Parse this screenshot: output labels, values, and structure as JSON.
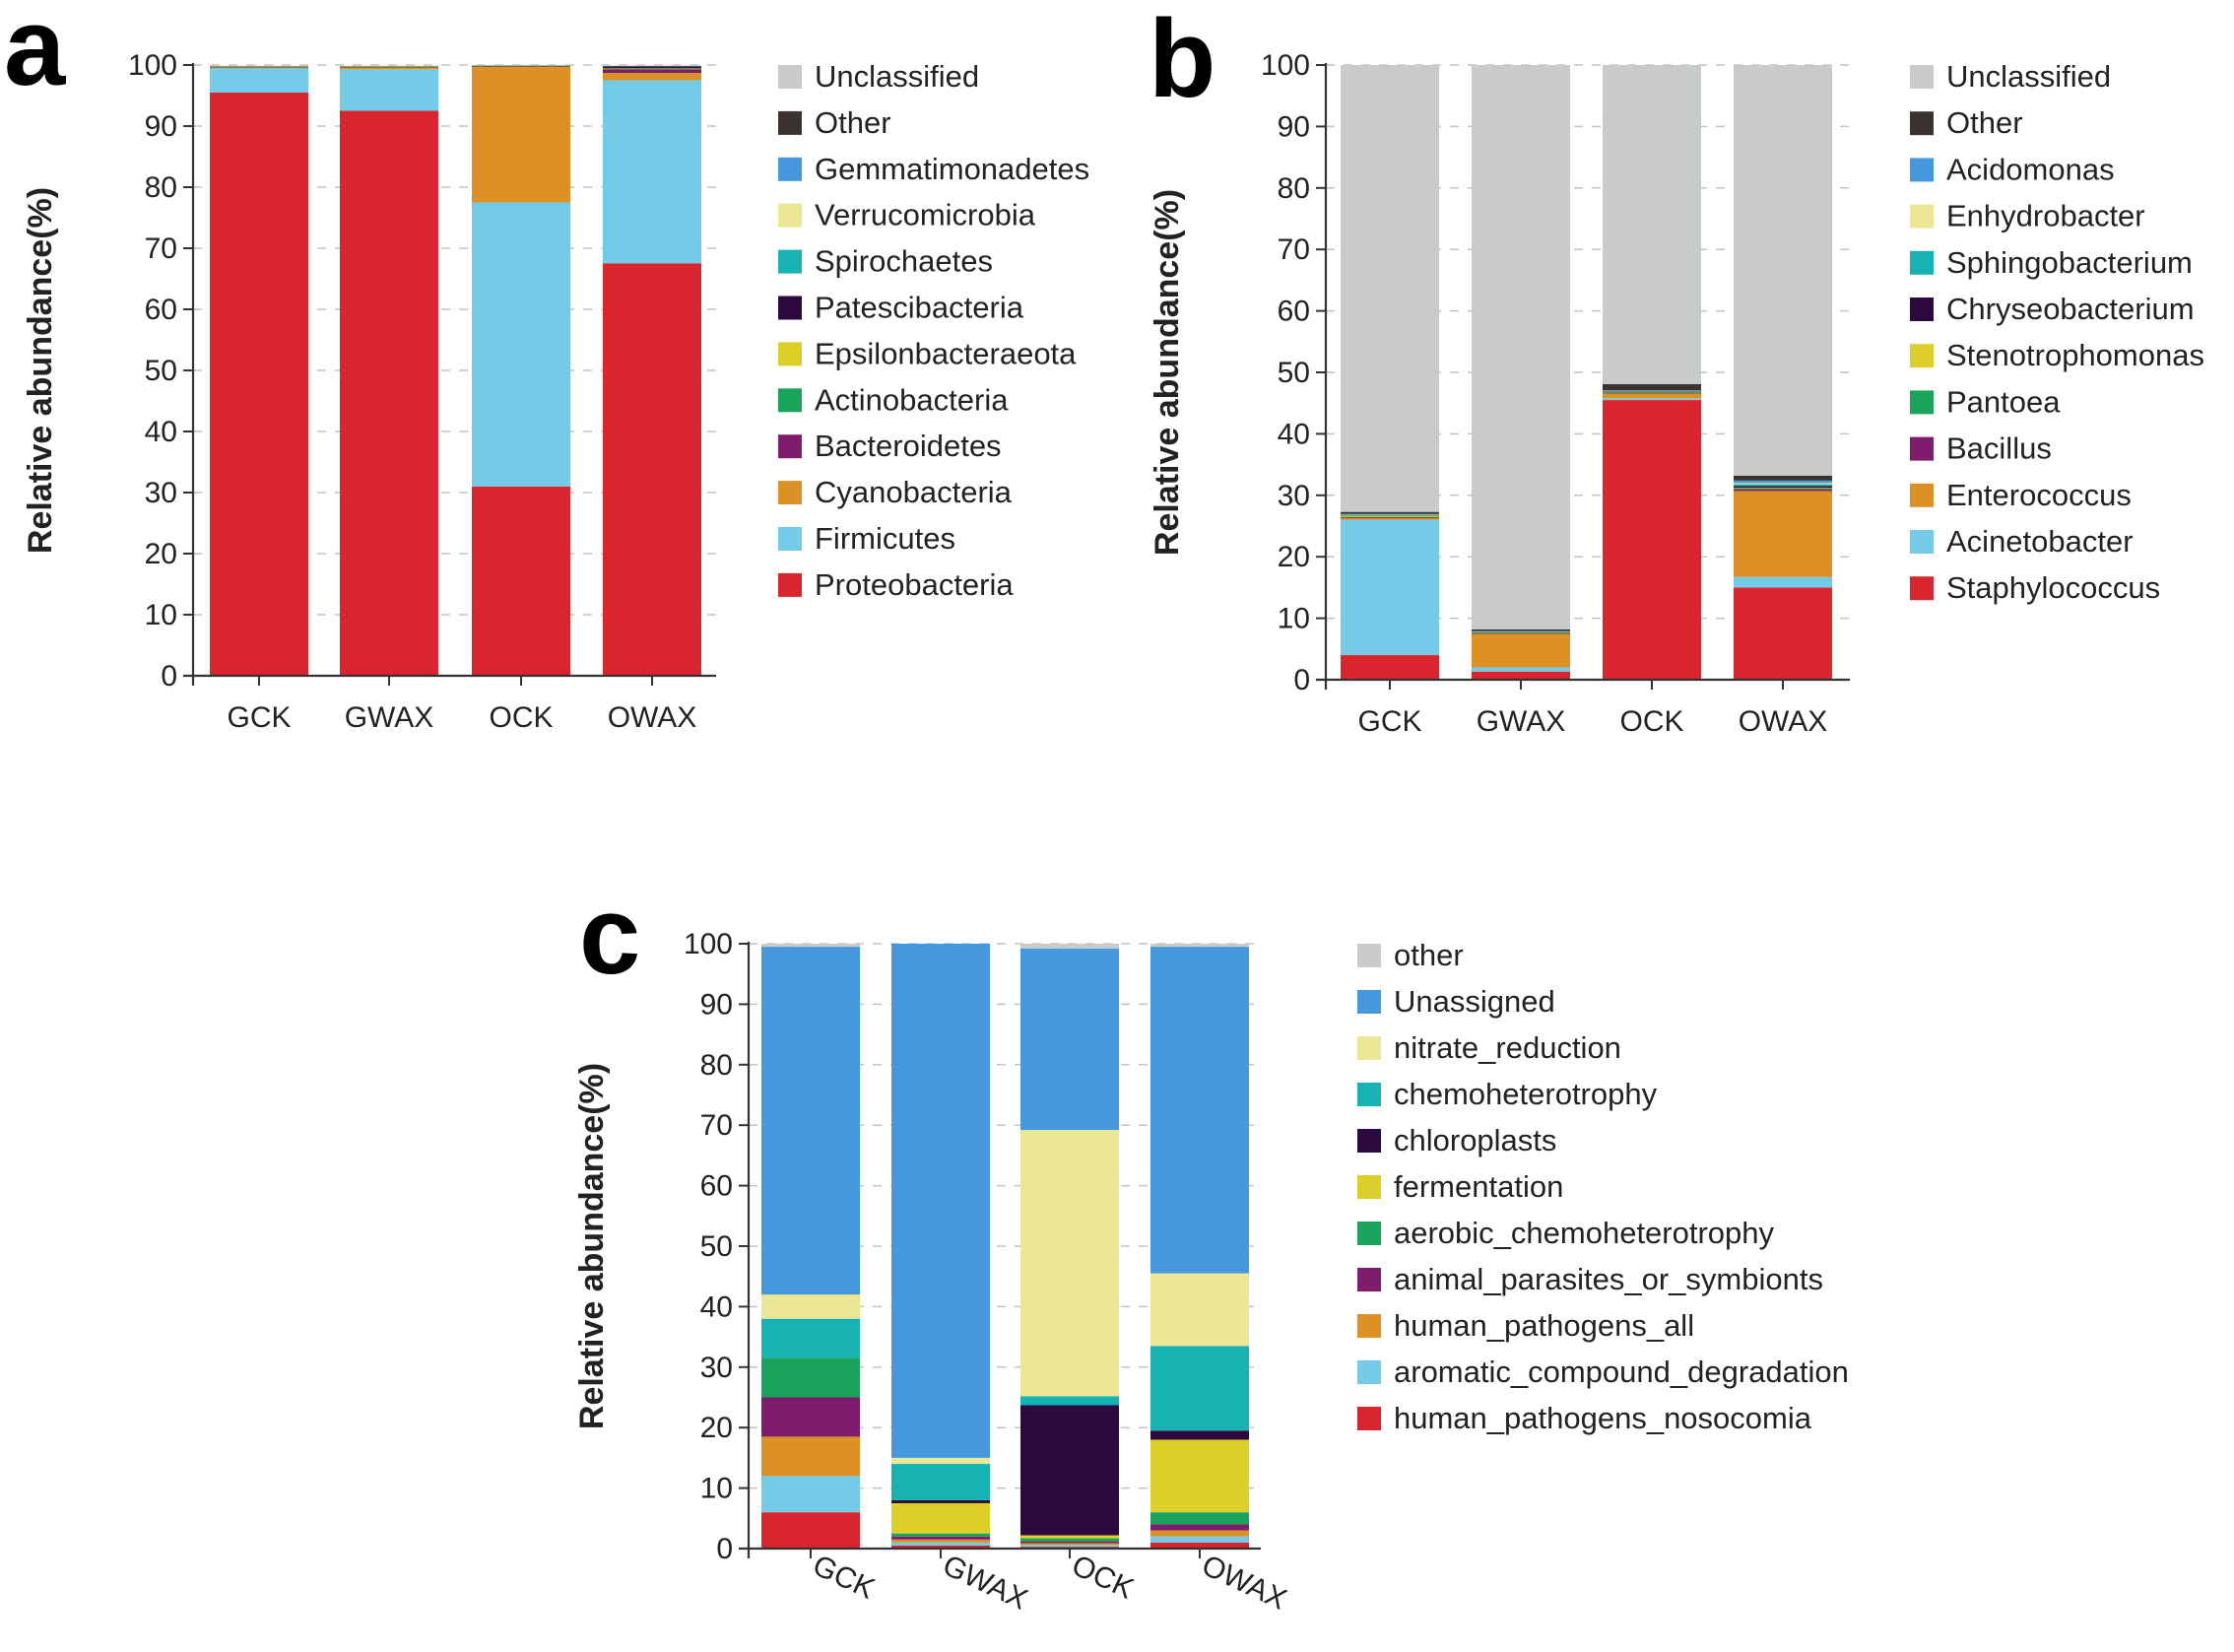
{
  "chart_data": [
    {
      "panel": "a",
      "type": "stacked_bar",
      "ylabel": "Relative abundance(%)",
      "ylim": [
        0,
        100
      ],
      "yticks": [
        0,
        10,
        20,
        30,
        40,
        50,
        60,
        70,
        80,
        90,
        100
      ],
      "grid": "dashed horizontal",
      "legend_position": "right",
      "categories": [
        "GCK",
        "GWAX",
        "OCK",
        "OWAX"
      ],
      "series": [
        {
          "name": "Proteobacteria",
          "color": "#d9262e",
          "values": [
            95.5,
            92.5,
            31.0,
            67.5
          ]
        },
        {
          "name": "Firmicutes",
          "color": "#74cbe8",
          "values": [
            4.0,
            6.8,
            46.5,
            30.0
          ]
        },
        {
          "name": "Cyanobacteria",
          "color": "#dd9125",
          "values": [
            0.1,
            0.3,
            22.3,
            1.2
          ]
        },
        {
          "name": "Bacteroidetes",
          "color": "#7e1d6c",
          "values": [
            0.1,
            0.1,
            0.05,
            0.6
          ]
        },
        {
          "name": "Actinobacteria",
          "color": "#1aa35b",
          "values": [
            0.05,
            0.05,
            0.05,
            0.1
          ]
        },
        {
          "name": "Epsilonbacteraeota",
          "color": "#dccf2a",
          "values": [
            0.05,
            0.05,
            0.0,
            0.05
          ]
        },
        {
          "name": "Patescibacteria",
          "color": "#2c0a40",
          "values": [
            0.0,
            0.0,
            0.0,
            0.35
          ]
        },
        {
          "name": "Spirochaetes",
          "color": "#17b3b3",
          "values": [
            0.0,
            0.0,
            0.0,
            0.05
          ]
        },
        {
          "name": "Verrucomicrobia",
          "color": "#ece795",
          "values": [
            0.0,
            0.0,
            0.0,
            0.0
          ]
        },
        {
          "name": "Gemmatimonadetes",
          "color": "#4598dc",
          "values": [
            0.0,
            0.0,
            0.0,
            0.0
          ]
        },
        {
          "name": "Other",
          "color": "#3a3330",
          "values": [
            0.05,
            0.05,
            0.05,
            0.05
          ]
        },
        {
          "name": "Unclassified",
          "color": "#c9cbca",
          "values": [
            0.05,
            0.05,
            0.05,
            0.05
          ]
        }
      ]
    },
    {
      "panel": "b",
      "type": "stacked_bar",
      "ylabel": "Relative abundance(%)",
      "ylim": [
        0,
        100
      ],
      "yticks": [
        0,
        10,
        20,
        30,
        40,
        50,
        60,
        70,
        80,
        90,
        100
      ],
      "grid": "dashed horizontal",
      "legend_position": "right",
      "categories": [
        "GCK",
        "GWAX",
        "OCK",
        "OWAX"
      ],
      "series": [
        {
          "name": "Staphylococcus",
          "color": "#d9262e",
          "values": [
            4.0,
            1.3,
            45.5,
            15.0
          ]
        },
        {
          "name": "Acinetobacter",
          "color": "#74cbe8",
          "values": [
            22.0,
            0.7,
            0.3,
            1.7
          ]
        },
        {
          "name": "Enterococcus",
          "color": "#dd9125",
          "values": [
            0.3,
            5.5,
            0.8,
            14.0
          ]
        },
        {
          "name": "Bacillus",
          "color": "#7e1d6c",
          "values": [
            0.1,
            0.1,
            0.1,
            0.3
          ]
        },
        {
          "name": "Pantoea",
          "color": "#1aa35b",
          "values": [
            0.1,
            0.05,
            0.1,
            0.1
          ]
        },
        {
          "name": "Stenotrophomonas",
          "color": "#dccf2a",
          "values": [
            0.3,
            0.05,
            0.1,
            0.1
          ]
        },
        {
          "name": "Chryseobacterium",
          "color": "#2c0a40",
          "values": [
            0.05,
            0.05,
            0.05,
            0.3
          ]
        },
        {
          "name": "Sphingobacterium",
          "color": "#17b3b3",
          "values": [
            0.05,
            0.05,
            0.05,
            0.3
          ]
        },
        {
          "name": "Enhydrobacter",
          "color": "#ece795",
          "values": [
            0.05,
            0.05,
            0.05,
            0.2
          ]
        },
        {
          "name": "Acidomonas",
          "color": "#4598dc",
          "values": [
            0.05,
            0.05,
            0.05,
            0.4
          ]
        },
        {
          "name": "Other",
          "color": "#3a3330",
          "values": [
            0.3,
            0.3,
            1.0,
            0.8
          ]
        },
        {
          "name": "Unclassified",
          "color": "#c9cbca",
          "values": [
            72.7,
            91.8,
            51.9,
            66.8
          ]
        }
      ]
    },
    {
      "panel": "c",
      "type": "stacked_bar",
      "ylabel": "Relative abundance(%)",
      "ylim": [
        0,
        100
      ],
      "yticks": [
        0,
        10,
        20,
        30,
        40,
        50,
        60,
        70,
        80,
        90,
        100
      ],
      "grid": "dashed horizontal",
      "legend_position": "right",
      "x_tick_rotation": "rotated",
      "categories": [
        "GCK",
        "GWAX",
        "OCK",
        "OWAX"
      ],
      "series": [
        {
          "name": "human_pathogens_nosocomia",
          "color": "#d9262e",
          "values": [
            6.0,
            0.5,
            0.3,
            1.0
          ]
        },
        {
          "name": "aromatic_compound_degradation",
          "color": "#74cbe8",
          "values": [
            6.0,
            0.5,
            0.3,
            1.0
          ]
        },
        {
          "name": "human_pathogens_all",
          "color": "#dd9125",
          "values": [
            6.5,
            0.5,
            0.3,
            1.0
          ]
        },
        {
          "name": "animal_parasites_or_symbionts",
          "color": "#7e1d6c",
          "values": [
            6.5,
            0.5,
            0.3,
            1.0
          ]
        },
        {
          "name": "aerobic_chemoheterotrophy",
          "color": "#1aa35b",
          "values": [
            6.5,
            0.5,
            0.5,
            2.0
          ]
        },
        {
          "name": "fermentation",
          "color": "#dccf2a",
          "values": [
            0.0,
            5.0,
            0.5,
            12.0
          ]
        },
        {
          "name": "chloroplasts",
          "color": "#2c0a40",
          "values": [
            0.0,
            0.5,
            21.5,
            1.5
          ]
        },
        {
          "name": "chemoheterotrophy",
          "color": "#17b3b3",
          "values": [
            6.5,
            6.0,
            1.5,
            14.0
          ]
        },
        {
          "name": "nitrate_reduction",
          "color": "#ece795",
          "values": [
            4.0,
            1.0,
            44.0,
            12.0
          ]
        },
        {
          "name": "Unassigned",
          "color": "#4598dc",
          "values": [
            57.5,
            85.0,
            30.0,
            54.0
          ]
        },
        {
          "name": "other",
          "color": "#c9cbca",
          "values": [
            0.5,
            0.0,
            0.8,
            0.5
          ]
        }
      ]
    }
  ]
}
